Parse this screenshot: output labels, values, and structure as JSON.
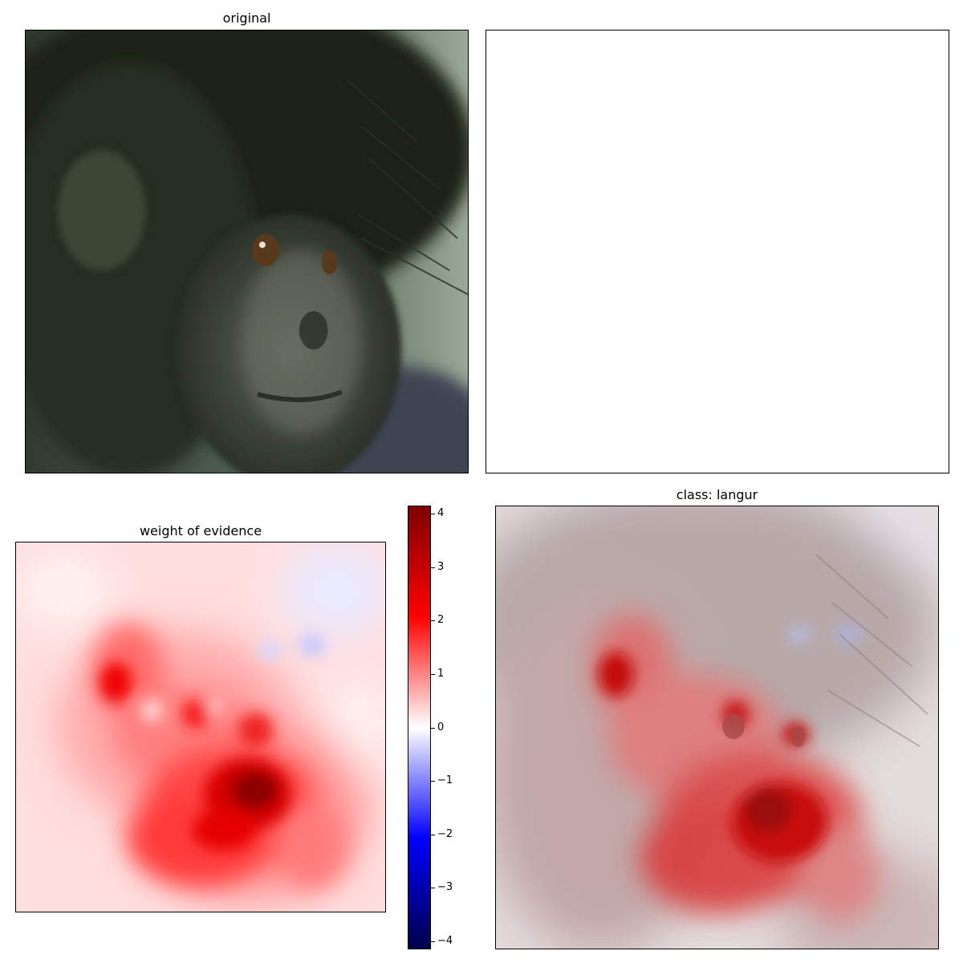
{
  "panels": {
    "original": {
      "title": "original",
      "image": "monkey-photo"
    },
    "blank": {
      "title": ""
    },
    "evidence": {
      "title": "weight of evidence",
      "image": "evidence-heatmap"
    },
    "overlay": {
      "title": "class: langur",
      "image": "overlay-heatmap"
    }
  },
  "colorbar": {
    "colormap": "seismic",
    "range": [
      -4.15,
      4.15
    ],
    "ticks": [
      {
        "value": 4,
        "label": "4"
      },
      {
        "value": 3,
        "label": "3"
      },
      {
        "value": 2,
        "label": "2"
      },
      {
        "value": 1,
        "label": "1"
      },
      {
        "value": 0,
        "label": "0"
      },
      {
        "value": -1,
        "label": "−1"
      },
      {
        "value": -2,
        "label": "−2"
      },
      {
        "value": -3,
        "label": "−3"
      },
      {
        "value": -4,
        "label": "−4"
      }
    ],
    "colors": {
      "low": "#00004c",
      "mid_low": "#0000ff",
      "zero": "#ffffff",
      "mid_high": "#ff0000",
      "high": "#800000"
    }
  }
}
